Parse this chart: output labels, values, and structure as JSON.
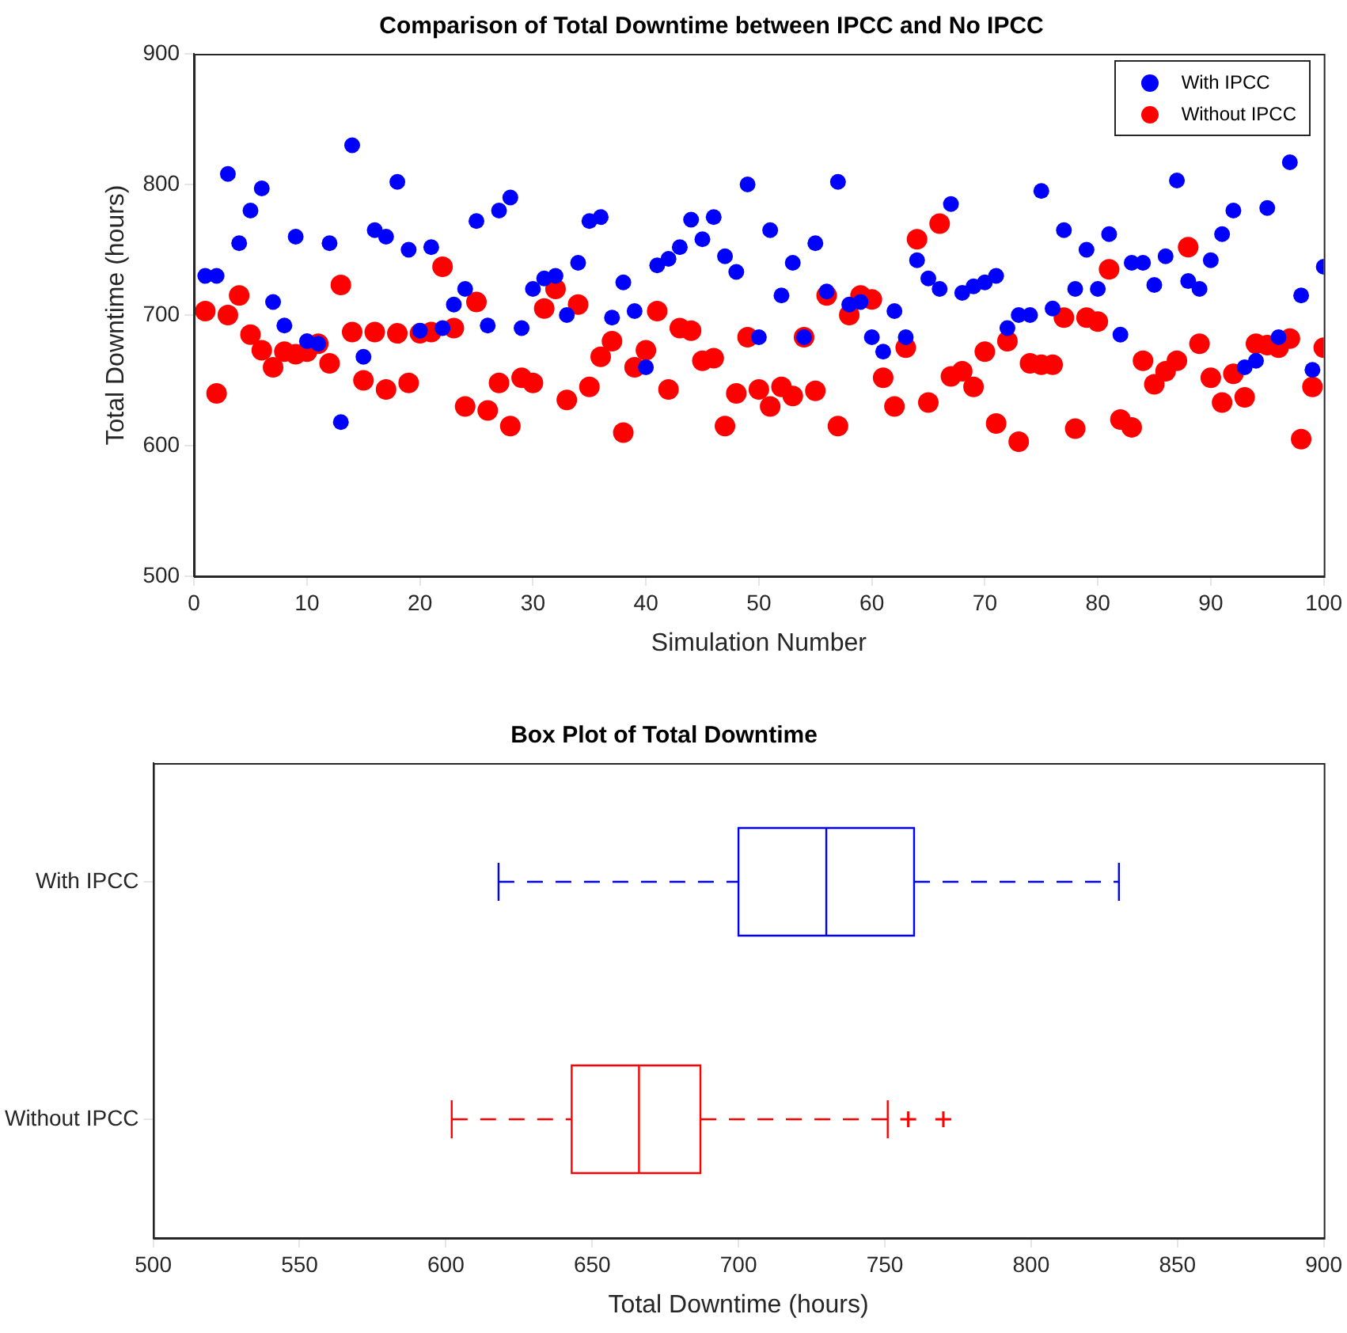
{
  "chart_data": [
    {
      "type": "scatter",
      "title": "Comparison of Total Downtime between IPCC and No IPCC",
      "xlabel": "Simulation Number",
      "ylabel": "Total Downtime (hours)",
      "x": [
        1,
        2,
        3,
        4,
        5,
        6,
        7,
        8,
        9,
        10,
        11,
        12,
        13,
        14,
        15,
        16,
        17,
        18,
        19,
        20,
        21,
        22,
        23,
        24,
        25,
        26,
        27,
        28,
        29,
        30,
        31,
        32,
        33,
        34,
        35,
        36,
        37,
        38,
        39,
        40,
        41,
        42,
        43,
        44,
        45,
        46,
        47,
        48,
        49,
        50,
        51,
        52,
        53,
        54,
        55,
        56,
        57,
        58,
        59,
        60,
        61,
        62,
        63,
        64,
        65,
        66,
        67,
        68,
        69,
        70,
        71,
        72,
        73,
        74,
        75,
        76,
        77,
        78,
        79,
        80,
        81,
        82,
        83,
        84,
        85,
        86,
        87,
        88,
        89,
        90,
        91,
        92,
        93,
        94,
        95,
        96,
        97,
        98,
        99,
        100
      ],
      "series": [
        {
          "name": "With IPCC",
          "color": "#0000ff",
          "values": [
            730,
            730,
            808,
            755,
            780,
            797,
            710,
            692,
            760,
            680,
            678,
            755,
            618,
            830,
            668,
            765,
            760,
            802,
            750,
            688,
            752,
            690,
            708,
            720,
            772,
            692,
            780,
            790,
            690,
            720,
            728,
            730,
            700,
            740,
            772,
            775,
            698,
            725,
            703,
            660,
            738,
            743,
            752,
            773,
            758,
            775,
            745,
            733,
            800,
            683,
            765,
            715,
            740,
            683,
            755,
            718,
            802,
            708,
            710,
            683,
            672,
            703,
            683,
            742,
            728,
            720,
            785,
            717,
            722,
            725,
            730,
            690,
            700,
            700,
            795,
            705,
            765,
            720,
            750,
            720,
            762,
            685,
            740,
            740,
            723,
            745,
            803,
            726,
            720,
            742,
            762,
            780,
            660,
            665,
            782,
            683,
            817,
            715,
            658,
            737
          ]
        },
        {
          "name": "Without IPCC",
          "color": "#ff0000",
          "values": [
            703,
            640,
            700,
            715,
            685,
            673,
            660,
            672,
            670,
            672,
            678,
            663,
            723,
            687,
            650,
            687,
            643,
            686,
            648,
            686,
            687,
            737,
            690,
            630,
            710,
            627,
            648,
            615,
            652,
            648,
            705,
            720,
            635,
            708,
            645,
            668,
            680,
            610,
            660,
            673,
            703,
            643,
            690,
            688,
            665,
            667,
            615,
            640,
            683,
            643,
            630,
            645,
            638,
            683,
            642,
            715,
            615,
            700,
            715,
            712,
            652,
            630,
            675,
            758,
            633,
            770,
            653,
            657,
            645,
            672,
            617,
            680,
            603,
            663,
            662,
            662,
            698,
            613,
            698,
            695,
            735,
            620,
            614,
            665,
            647,
            657,
            665,
            752,
            678,
            652,
            633,
            655,
            637,
            678,
            677,
            675,
            682,
            605,
            645,
            675
          ]
        }
      ],
      "xlim": [
        0,
        100
      ],
      "xticks": [
        0,
        10,
        20,
        30,
        40,
        50,
        60,
        70,
        80,
        90,
        100
      ],
      "ylim": [
        500,
        900
      ],
      "yticks": [
        500,
        600,
        700,
        800,
        900
      ],
      "legend": "top right",
      "marker": "circle"
    },
    {
      "type": "box",
      "orientation": "horizontal",
      "title": "Box Plot of Total Downtime",
      "xlabel": "Total Downtime (hours)",
      "categories": [
        "With IPCC",
        "Without IPCC"
      ],
      "colors": [
        "#0000ff",
        "#ff0000"
      ],
      "boxes": [
        {
          "low": 618,
          "q1": 700,
          "median": 730,
          "q3": 760,
          "high": 830
        },
        {
          "low": 602,
          "q1": 643,
          "median": 666,
          "q3": 687,
          "high": 751,
          "outliers": [
            758,
            770
          ]
        }
      ],
      "xlim": [
        500,
        900
      ],
      "xticks": [
        500,
        550,
        600,
        650,
        700,
        750,
        800,
        850,
        900
      ]
    }
  ]
}
